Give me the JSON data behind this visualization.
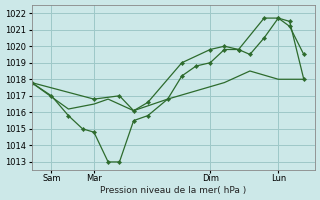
{
  "title": "Pression niveau de la mer( hPa )",
  "bg_color": "#cce8e8",
  "grid_color": "#9ec8c8",
  "line_color": "#2d6b2d",
  "ylim": [
    1012.5,
    1022.5
  ],
  "yticks": [
    1013,
    1014,
    1015,
    1016,
    1017,
    1018,
    1019,
    1020,
    1021,
    1022
  ],
  "xlim": [
    0,
    10.0
  ],
  "day_labels": [
    "Sam",
    "Mar",
    "Dim",
    "Lun"
  ],
  "day_positions": [
    0.7,
    2.2,
    6.3,
    8.7
  ],
  "vline_positions": [
    0.7,
    2.2,
    6.3,
    8.7
  ],
  "line1_x": [
    0.0,
    0.7,
    1.3,
    1.8,
    2.2,
    2.7,
    3.1,
    3.6,
    4.1,
    4.8,
    5.3,
    5.8,
    6.3,
    6.8,
    7.3,
    7.7,
    8.2,
    8.7,
    9.1,
    9.6
  ],
  "line1_y": [
    1017.8,
    1017.0,
    1015.8,
    1015.0,
    1014.8,
    1013.0,
    1013.0,
    1015.5,
    1015.8,
    1016.8,
    1018.2,
    1018.8,
    1019.0,
    1019.8,
    1019.8,
    1019.5,
    1020.5,
    1021.7,
    1021.5,
    1018.0
  ],
  "line2_x": [
    0.0,
    1.3,
    2.2,
    2.7,
    3.6,
    4.8,
    5.8,
    6.8,
    7.7,
    8.7,
    9.6
  ],
  "line2_y": [
    1017.8,
    1016.2,
    1016.5,
    1016.8,
    1016.1,
    1016.8,
    1017.3,
    1017.8,
    1018.5,
    1018.0,
    1018.0
  ],
  "line3_x": [
    0.0,
    2.2,
    3.1,
    3.6,
    4.1,
    5.3,
    6.3,
    6.8,
    7.3,
    8.2,
    8.7,
    9.1,
    9.6
  ],
  "line3_y": [
    1017.8,
    1016.8,
    1017.0,
    1016.1,
    1016.6,
    1019.0,
    1019.8,
    1020.0,
    1019.8,
    1021.7,
    1021.7,
    1021.2,
    1019.5
  ]
}
